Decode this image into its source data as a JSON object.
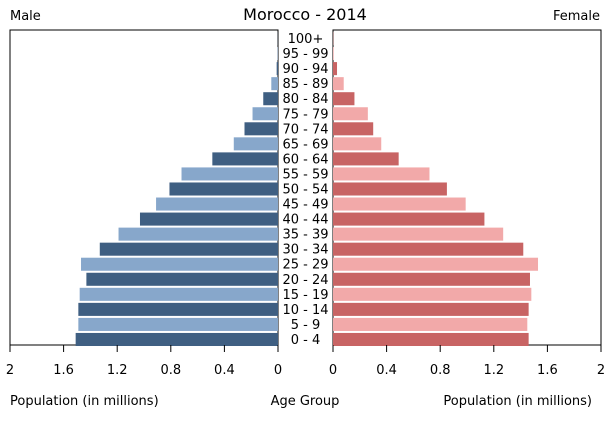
{
  "chart_data": {
    "type": "bar",
    "title": "Morocco - 2014",
    "male_label": "Male",
    "female_label": "Female",
    "xlabel_left": "Population (in millions)",
    "xlabel_center": "Age Group",
    "xlabel_right": "Population (in millions)",
    "xlim": [
      0,
      2
    ],
    "x_ticks": [
      "2",
      "1.6",
      "1.2",
      "0.8",
      "0.4",
      "0"
    ],
    "x_ticks_right": [
      "0",
      "0.4",
      "0.8",
      "1.2",
      "1.6",
      "2"
    ],
    "categories": [
      "100+",
      "95 - 99",
      "90 - 94",
      "85 - 89",
      "80 - 84",
      "75 - 79",
      "70 - 74",
      "65 - 69",
      "60 - 64",
      "55 - 59",
      "50 - 54",
      "45 - 49",
      "40 - 44",
      "35 - 39",
      "30 - 34",
      "25 - 29",
      "20 - 24",
      "15 - 19",
      "10 - 14",
      "5 - 9",
      "0 - 4"
    ],
    "series": [
      {
        "name": "Male",
        "values": [
          0.001,
          0.003,
          0.01,
          0.05,
          0.11,
          0.19,
          0.25,
          0.33,
          0.49,
          0.72,
          0.81,
          0.91,
          1.03,
          1.19,
          1.33,
          1.47,
          1.43,
          1.48,
          1.49,
          1.49,
          1.51
        ],
        "colors": [
          "#3f5f82",
          "#87a7cb"
        ]
      },
      {
        "name": "Female",
        "values": [
          0.002,
          0.005,
          0.03,
          0.08,
          0.16,
          0.26,
          0.3,
          0.36,
          0.49,
          0.72,
          0.85,
          0.99,
          1.13,
          1.27,
          1.42,
          1.53,
          1.47,
          1.48,
          1.46,
          1.45,
          1.46
        ],
        "colors": [
          "#c86464",
          "#f2a9a9"
        ]
      }
    ],
    "grid": false
  }
}
